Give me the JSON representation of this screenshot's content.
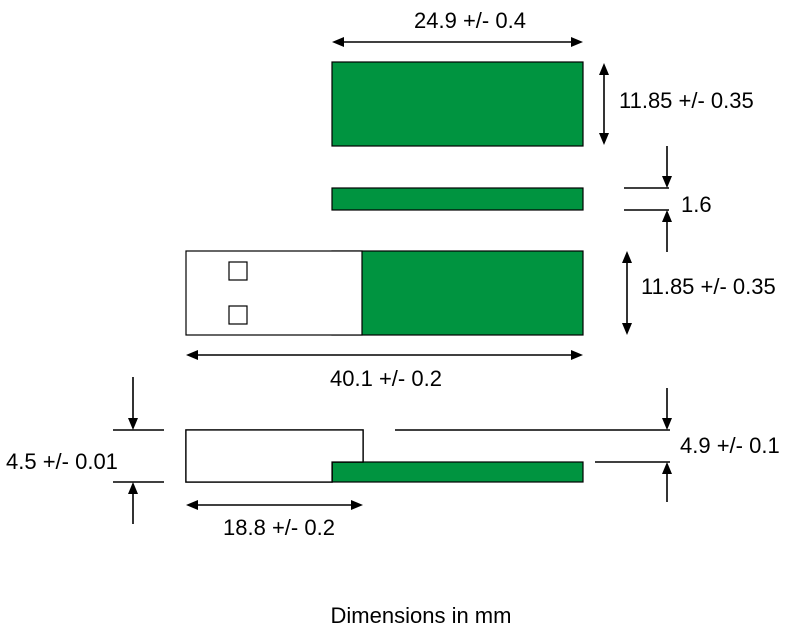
{
  "dimensions": {
    "top_width": "24.9 +/- 0.4",
    "top_height": "11.85 +/- 0.35",
    "thickness": "1.6",
    "assembly_height": "11.85 +/- 0.35",
    "assembly_length": "40.1 +/- 0.2",
    "plug_height": "4.5 +/- 0.01",
    "plug_length": "18.8 +/- 0.2",
    "side_height": "4.9 +/- 0.1"
  },
  "footer": "Dimensions in mm",
  "colors": {
    "pcb": "#009440",
    "plug": "#ffffff",
    "line": "#000000"
  }
}
